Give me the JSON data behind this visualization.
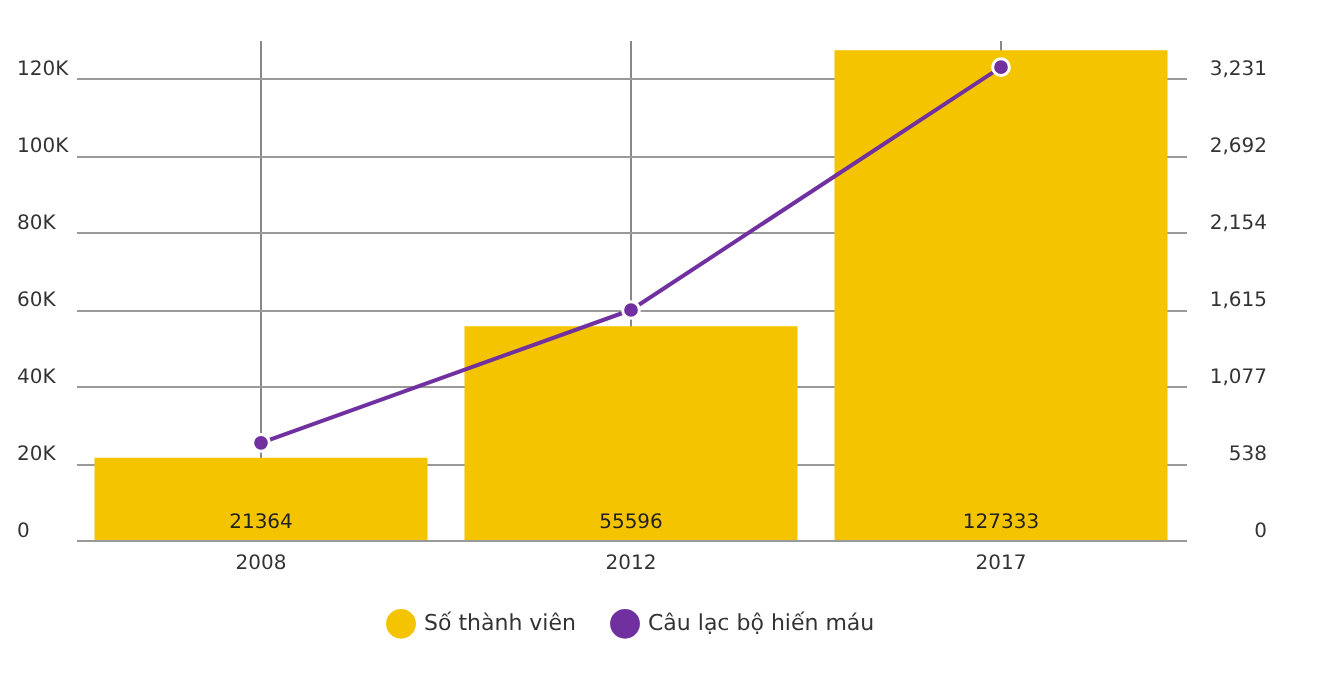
{
  "chart_data": {
    "type": "bar",
    "categories": [
      "2008",
      "2012",
      "2017"
    ],
    "series": [
      {
        "name": "Số thành viên",
        "color": "#f5c400",
        "values": [
          21364,
          55596,
          127333
        ],
        "value_labels": [
          "21364",
          "55596",
          "127333"
        ]
      },
      {
        "name": "Câu lạc bộ hiến máu",
        "type": "line",
        "axis": "y2",
        "color": "#7030a0",
        "values": [
          680,
          1610,
          3310
        ],
        "marker": "circle"
      }
    ],
    "ylim": [
      0,
      130000
    ],
    "yticks": [
      0,
      {
        "value": 20000,
        "label": "20K"
      },
      {
        "value": 40000,
        "label": "40K"
      },
      {
        "value": 60000,
        "label": "60K"
      },
      {
        "value": 80000,
        "label": "80K"
      },
      {
        "value": 100000,
        "label": "100K"
      },
      {
        "value": 120000,
        "label": "120K"
      }
    ],
    "y2lim": [
      0,
      3500
    ],
    "y2ticks": [
      0,
      538,
      {
        "value": 1077,
        "label": "1,077"
      },
      {
        "value": 1615,
        "label": "1,615"
      },
      {
        "value": 2154,
        "label": "2,154"
      },
      {
        "value": 2692,
        "label": "2,692"
      },
      {
        "value": 3231,
        "label": "3,231"
      }
    ],
    "grid": true,
    "legend": "bottom"
  }
}
